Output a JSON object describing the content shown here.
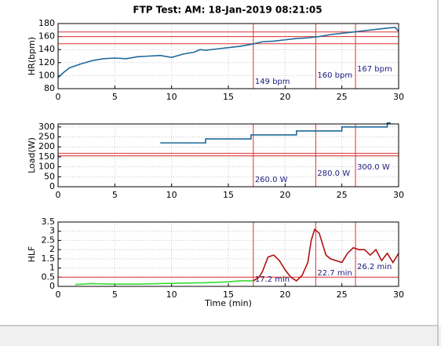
{
  "chart_data": [
    {
      "type": "line",
      "title": "FTP Test: AM: 18-Jan-2019 08:21:05",
      "ylabel": "HR(bpm)",
      "xlim": [
        0,
        30
      ],
      "xticks": [
        0,
        5,
        10,
        15,
        20,
        25,
        30
      ],
      "ylim": [
        80,
        180
      ],
      "yticks": [
        80,
        100,
        120,
        140,
        160,
        180
      ],
      "grid": true,
      "ref_color": "#e03030",
      "hlines": [
        149,
        160,
        167
      ],
      "vlines": [
        17.2,
        22.7,
        26.2
      ],
      "annotations": [
        "149 bpm",
        "160 bpm",
        "167 bpm"
      ],
      "series": [
        {
          "color": "#1f6a9a",
          "x": [
            0,
            0.5,
            1,
            2,
            3,
            4,
            5,
            6,
            7,
            8,
            9,
            10,
            11,
            12,
            12.5,
            13,
            14,
            15,
            16,
            17,
            18,
            19,
            20,
            21,
            22,
            23,
            24,
            25,
            26,
            27,
            28,
            29,
            29.7,
            30
          ],
          "values": [
            97,
            105,
            112,
            118,
            123,
            126,
            127,
            126,
            129,
            130,
            131,
            128,
            133,
            136,
            140,
            139,
            141,
            143,
            145,
            148,
            152,
            153,
            155,
            157,
            158,
            160,
            163,
            165,
            167,
            169,
            171,
            173,
            174,
            168
          ]
        }
      ]
    },
    {
      "type": "line",
      "ylabel": "Load(W)",
      "xlim": [
        0,
        30
      ],
      "xticks": [
        0,
        5,
        10,
        15,
        20,
        25,
        30
      ],
      "ylim": [
        0,
        315
      ],
      "yticks": [
        0,
        50,
        100,
        150,
        200,
        250,
        300
      ],
      "grid": true,
      "ref_color": "#e03030",
      "hlines": [
        155,
        168
      ],
      "vlines": [
        17.2,
        22.7,
        26.2
      ],
      "annotations": [
        "260.0 W",
        "280.0 W",
        "300.0 W"
      ],
      "series": [
        {
          "color": "#1f6a9a",
          "x": [
            9,
            13,
            13,
            17,
            17,
            21,
            21,
            25,
            25,
            29,
            29,
            29.3
          ],
          "values": [
            220,
            220,
            240,
            240,
            260,
            260,
            280,
            280,
            300,
            300,
            320,
            320
          ]
        }
      ]
    },
    {
      "type": "line",
      "ylabel": "HLF",
      "xlabel": "Time (min)",
      "xlim": [
        0,
        30
      ],
      "xticks": [
        0,
        5,
        10,
        15,
        20,
        25,
        30
      ],
      "ylim": [
        0,
        3.5
      ],
      "yticks": [
        0,
        0.5,
        1,
        1.5,
        2,
        2.5,
        3,
        3.5
      ],
      "grid": true,
      "ref_color": "#e03030",
      "hlines": [
        0.5
      ],
      "vlines": [
        17.2,
        22.7,
        26.2
      ],
      "annotations": [
        "17.2 min",
        "22.7 min",
        "26.2 min"
      ],
      "series": [
        {
          "color": "#33dd33",
          "x": [
            1.5,
            3,
            5,
            7,
            9,
            11,
            13,
            15,
            16,
            17.2
          ],
          "values": [
            0.1,
            0.15,
            0.12,
            0.12,
            0.15,
            0.18,
            0.2,
            0.25,
            0.3,
            0.3
          ]
        },
        {
          "color": "#b01010",
          "x": [
            17.2,
            17.7,
            18,
            18.5,
            19,
            19.5,
            20,
            20.5,
            21,
            21.5,
            22,
            22.3,
            22.6,
            23,
            23.3,
            23.6,
            24,
            24.5,
            25,
            25.5,
            26,
            26.5,
            27,
            27.5,
            28,
            28.5,
            29,
            29.5,
            30
          ],
          "values": [
            0.3,
            0.5,
            0.8,
            1.6,
            1.7,
            1.4,
            0.9,
            0.5,
            0.3,
            0.6,
            1.3,
            2.5,
            3.1,
            2.9,
            2.3,
            1.7,
            1.5,
            1.4,
            1.3,
            1.8,
            2.1,
            2.0,
            2.0,
            1.7,
            2.0,
            1.4,
            1.8,
            1.3,
            1.8
          ]
        }
      ]
    }
  ]
}
